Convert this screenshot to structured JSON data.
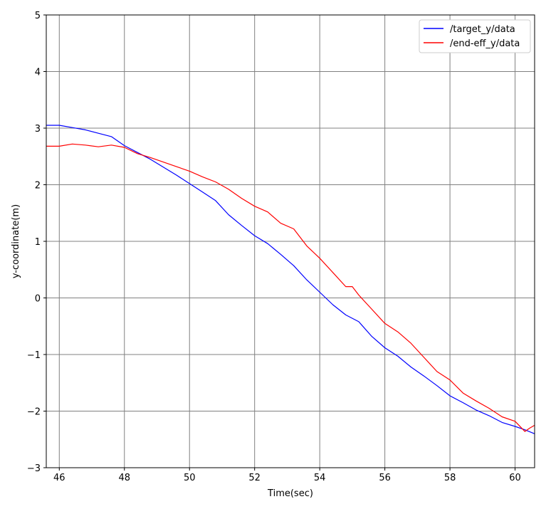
{
  "chart_data": {
    "type": "line",
    "title": "",
    "xlabel": "Time(sec)",
    "ylabel": "y-coordinate(m)",
    "xlim": [
      45.6,
      60.6
    ],
    "ylim": [
      -3,
      5
    ],
    "xticks": [
      46,
      48,
      50,
      52,
      54,
      56,
      58,
      60
    ],
    "yticks": [
      -3,
      -2,
      -1,
      0,
      1,
      2,
      3,
      4,
      5
    ],
    "xtick_labels": [
      "46",
      "48",
      "50",
      "52",
      "54",
      "56",
      "58",
      "60"
    ],
    "ytick_labels": [
      "−3",
      "−2",
      "−1",
      "0",
      "1",
      "2",
      "3",
      "4",
      "5"
    ],
    "grid": true,
    "legend_position": "top-right",
    "series": [
      {
        "name": "/target_y/data",
        "color": "#0000ff",
        "points": [
          [
            45.6,
            3.05
          ],
          [
            46.0,
            3.05
          ],
          [
            46.4,
            3.01
          ],
          [
            46.8,
            2.97
          ],
          [
            47.2,
            2.91
          ],
          [
            47.6,
            2.85
          ],
          [
            48.0,
            2.69
          ],
          [
            48.4,
            2.57
          ],
          [
            48.8,
            2.45
          ],
          [
            49.2,
            2.31
          ],
          [
            49.6,
            2.17
          ],
          [
            50.0,
            2.02
          ],
          [
            50.4,
            1.87
          ],
          [
            50.8,
            1.72
          ],
          [
            51.2,
            1.47
          ],
          [
            51.6,
            1.28
          ],
          [
            52.0,
            1.1
          ],
          [
            52.4,
            0.96
          ],
          [
            52.8,
            0.77
          ],
          [
            53.2,
            0.57
          ],
          [
            53.6,
            0.32
          ],
          [
            54.0,
            0.1
          ],
          [
            54.4,
            -0.12
          ],
          [
            54.8,
            -0.3
          ],
          [
            55.2,
            -0.42
          ],
          [
            55.6,
            -0.68
          ],
          [
            56.0,
            -0.88
          ],
          [
            56.4,
            -1.03
          ],
          [
            56.8,
            -1.22
          ],
          [
            57.2,
            -1.38
          ],
          [
            57.6,
            -1.55
          ],
          [
            58.0,
            -1.73
          ],
          [
            58.4,
            -1.85
          ],
          [
            58.8,
            -1.98
          ],
          [
            59.2,
            -2.08
          ],
          [
            59.6,
            -2.2
          ],
          [
            60.0,
            -2.27
          ],
          [
            60.3,
            -2.33
          ],
          [
            60.6,
            -2.4
          ]
        ]
      },
      {
        "name": "/end-eff_y/data",
        "color": "#ff0000",
        "points": [
          [
            45.6,
            2.68
          ],
          [
            46.0,
            2.68
          ],
          [
            46.4,
            2.72
          ],
          [
            46.8,
            2.7
          ],
          [
            47.2,
            2.67
          ],
          [
            47.6,
            2.7
          ],
          [
            48.0,
            2.66
          ],
          [
            48.4,
            2.55
          ],
          [
            48.8,
            2.48
          ],
          [
            49.2,
            2.4
          ],
          [
            49.6,
            2.32
          ],
          [
            50.0,
            2.24
          ],
          [
            50.4,
            2.14
          ],
          [
            50.8,
            2.05
          ],
          [
            51.2,
            1.92
          ],
          [
            51.6,
            1.76
          ],
          [
            52.0,
            1.62
          ],
          [
            52.4,
            1.52
          ],
          [
            52.8,
            1.32
          ],
          [
            53.2,
            1.22
          ],
          [
            53.6,
            0.92
          ],
          [
            54.0,
            0.7
          ],
          [
            54.4,
            0.45
          ],
          [
            54.8,
            0.2
          ],
          [
            55.0,
            0.2
          ],
          [
            55.2,
            0.05
          ],
          [
            55.6,
            -0.2
          ],
          [
            56.0,
            -0.45
          ],
          [
            56.4,
            -0.6
          ],
          [
            56.8,
            -0.8
          ],
          [
            57.2,
            -1.05
          ],
          [
            57.6,
            -1.3
          ],
          [
            58.0,
            -1.45
          ],
          [
            58.4,
            -1.68
          ],
          [
            58.8,
            -1.82
          ],
          [
            59.2,
            -1.95
          ],
          [
            59.6,
            -2.1
          ],
          [
            60.0,
            -2.18
          ],
          [
            60.3,
            -2.36
          ],
          [
            60.45,
            -2.3
          ],
          [
            60.6,
            -2.25
          ]
        ]
      }
    ]
  }
}
